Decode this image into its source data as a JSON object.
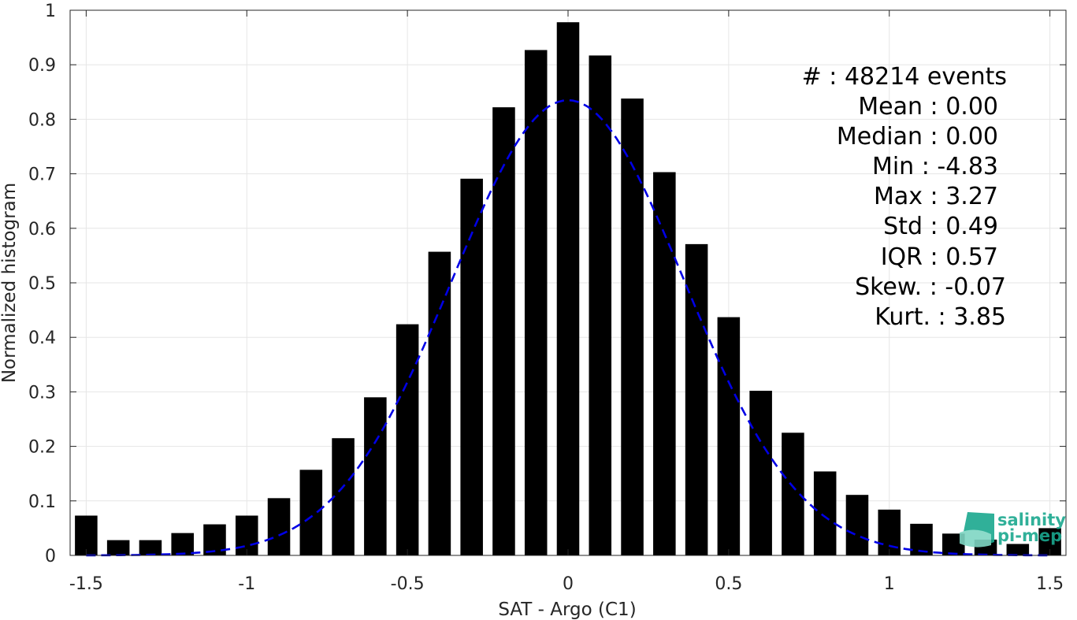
{
  "colors": {
    "bars": "#000000",
    "fit": "#0000e6",
    "grid": "#e6e6e6",
    "axis": "#262626",
    "logo": "#1aa88f"
  },
  "logo": {
    "line1": "salinity",
    "line2": "pi-mep"
  },
  "stats": [
    "#  : 48214 events",
    "Mean : 0.00",
    "Median : 0.00",
    "Min : -4.83",
    "Max : 3.27",
    "Std : 0.49",
    "IQR : 0.57",
    "Skew. : -0.07",
    "Kurt. : 3.85"
  ],
  "chart_data": {
    "type": "bar",
    "xlabel": "SAT - Argo (C1)",
    "ylabel": "Normalized histogram",
    "xlim": [
      -1.55,
      1.55
    ],
    "ylim": [
      0,
      1
    ],
    "grid": true,
    "xticks": [
      -1.5,
      -1,
      -0.5,
      0,
      0.5,
      1,
      1.5
    ],
    "xtick_labels": [
      "-1.5",
      "-1",
      "-0.5",
      "0",
      "0.5",
      "1",
      "1.5"
    ],
    "yticks": [
      0,
      0.1,
      0.2,
      0.3,
      0.4,
      0.5,
      0.6,
      0.7,
      0.8,
      0.9,
      1
    ],
    "ytick_labels": [
      "0",
      "0.1",
      "0.2",
      "0.3",
      "0.4",
      "0.5",
      "0.6",
      "0.7",
      "0.8",
      "0.9",
      "1"
    ],
    "bar_width": 0.07,
    "x": [
      -1.5,
      -1.4,
      -1.3,
      -1.2,
      -1.1,
      -1.0,
      -0.9,
      -0.8,
      -0.7,
      -0.6,
      -0.5,
      -0.4,
      -0.3,
      -0.2,
      -0.1,
      0.0,
      0.1,
      0.2,
      0.3,
      0.4,
      0.5,
      0.6,
      0.7,
      0.8,
      0.9,
      1.0,
      1.1,
      1.2,
      1.3,
      1.4,
      1.5
    ],
    "values": [
      0.073,
      0.028,
      0.028,
      0.041,
      0.057,
      0.073,
      0.105,
      0.157,
      0.215,
      0.29,
      0.424,
      0.557,
      0.691,
      0.822,
      0.927,
      0.978,
      0.917,
      0.838,
      0.703,
      0.571,
      0.437,
      0.302,
      0.225,
      0.154,
      0.111,
      0.084,
      0.058,
      0.04,
      0.029,
      0.021,
      0.05
    ],
    "fit": {
      "type": "gaussian-dashed",
      "peak": 0.835,
      "mean": 0.0,
      "sigma": 0.36,
      "x_range": [
        -1.5,
        1.5
      ]
    }
  }
}
